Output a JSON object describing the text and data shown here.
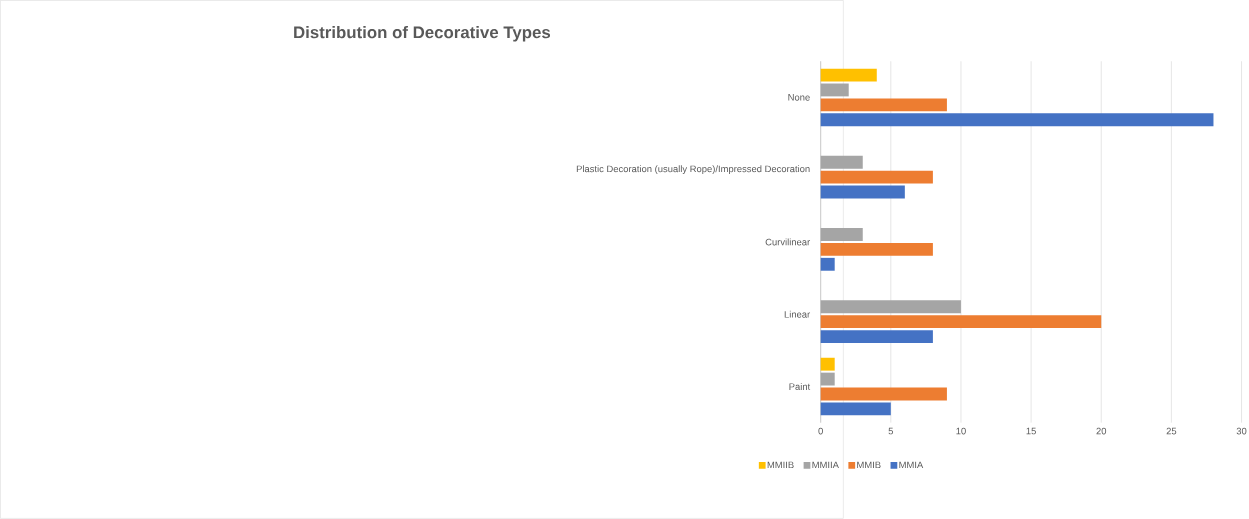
{
  "chart_data": {
    "type": "bar",
    "orientation": "horizontal",
    "title": "Distribution of Decorative Types",
    "categories": [
      "None",
      "Plastic Decoration (usually Rope)/Impressed Decoration",
      "Curvilinear",
      "Linear",
      "Paint"
    ],
    "series": [
      {
        "name": "MMIA",
        "color": "#4472c4",
        "values": [
          28,
          6,
          1,
          8,
          5
        ]
      },
      {
        "name": "MMIB",
        "color": "#ed7d31",
        "values": [
          9,
          8,
          8,
          20,
          9
        ]
      },
      {
        "name": "MMIIA",
        "color": "#a5a5a5",
        "values": [
          2,
          3,
          3,
          10,
          1
        ]
      },
      {
        "name": "MMIIB",
        "color": "#ffc000",
        "values": [
          4,
          0,
          0,
          0,
          1
        ]
      }
    ],
    "xlim": [
      0,
      30
    ],
    "xticks": [
      0,
      5,
      10,
      15,
      20,
      25,
      30
    ],
    "grid": "x",
    "legend": "bottom"
  }
}
